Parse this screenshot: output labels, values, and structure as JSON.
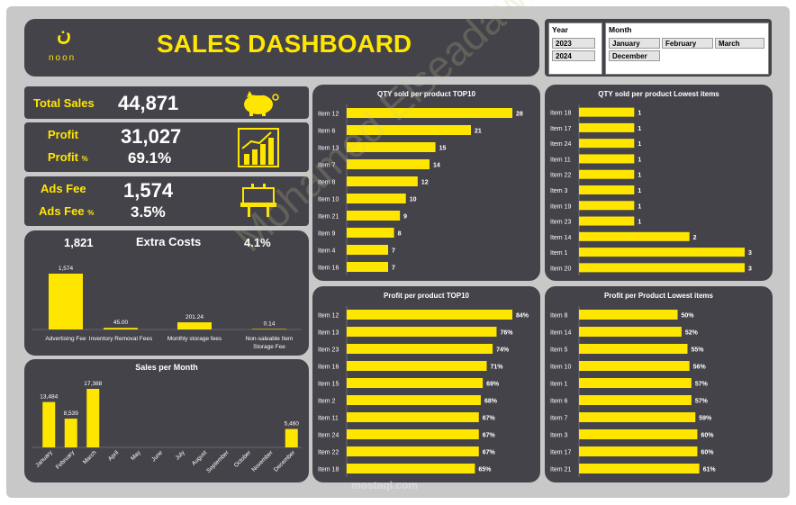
{
  "header": {
    "logo_text": "noon",
    "logo_glyph": "ن",
    "title": "SALES DASHBOARD"
  },
  "slicers": {
    "year": {
      "title": "Year",
      "options": [
        "2023",
        "2024"
      ]
    },
    "month": {
      "title": "Month",
      "options": [
        "January",
        "February",
        "March",
        "December"
      ]
    }
  },
  "kpis": {
    "total_sales": {
      "label": "Total Sales",
      "value": "44,871"
    },
    "profit": {
      "label": "Profit",
      "value": "31,027",
      "pct_label": "Profit",
      "pct_symbol": "%",
      "pct_value": "69.1%"
    },
    "ads_fee": {
      "label": "Ads Fee",
      "value": "1,574",
      "pct_label": "Ads Fee",
      "pct_symbol": "%",
      "pct_value": "3.5%"
    }
  },
  "colors": {
    "accent": "#ffe600",
    "card": "#45434a",
    "frame": "#c8c8c8"
  },
  "watermark": {
    "text": "Mohamed Elseadawi",
    "site": "mostaql.com"
  },
  "chart_data": [
    {
      "id": "extra_costs",
      "type": "bar",
      "title": "Extra Costs",
      "header_total": "1,821",
      "header_pct": "4.1%",
      "categories": [
        "Advertising Fee",
        "Inventory Removal Fees",
        "Monthly storage fees",
        "Non-saleable Item Storage Fee"
      ],
      "values": [
        1574,
        45.0,
        201.24,
        0.14
      ],
      "labels": [
        "1,574",
        "45.00",
        "201.24",
        "0.14"
      ]
    },
    {
      "id": "sales_month",
      "type": "bar",
      "title": "Sales per Month",
      "categories": [
        "January",
        "February",
        "March",
        "April",
        "May",
        "June",
        "July",
        "August",
        "September",
        "October",
        "November",
        "December"
      ],
      "values": [
        13484,
        8539,
        17388,
        0,
        0,
        0,
        0,
        0,
        0,
        0,
        0,
        5460
      ],
      "labels": [
        "13,484",
        "8,539",
        "17,388",
        "",
        "",
        "",
        "",
        "",
        "",
        "",
        "",
        "5,460"
      ]
    },
    {
      "id": "qty_top",
      "type": "bar",
      "title": "QTY sold per product TOP10",
      "categories": [
        "Item 12",
        "Item 6",
        "Item 13",
        "Item 7",
        "Item 8",
        "Item 10",
        "Item 21",
        "Item 9",
        "Item 4",
        "Item 16"
      ],
      "values": [
        28,
        21,
        15,
        14,
        12,
        10,
        9,
        8,
        7,
        7
      ],
      "labels": [
        "28",
        "21",
        "15",
        "14",
        "12",
        "10",
        "9",
        "8",
        "7",
        "7"
      ]
    },
    {
      "id": "qty_low",
      "type": "bar",
      "title": "QTY sold per product Lowest items",
      "categories": [
        "Item 18",
        "Item 17",
        "Item 24",
        "Item 11",
        "Item 22",
        "Item 3",
        "Item 19",
        "Item 23",
        "Item 14",
        "Item 1",
        "Item 20"
      ],
      "values": [
        1,
        1,
        1,
        1,
        1,
        1,
        1,
        1,
        2,
        3,
        3
      ],
      "labels": [
        "1",
        "1",
        "1",
        "1",
        "1",
        "1",
        "1",
        "1",
        "2",
        "3",
        "3"
      ]
    },
    {
      "id": "profit_top",
      "type": "bar",
      "title": "Profit per product TOP10",
      "categories": [
        "Item 12",
        "Item 13",
        "Item 23",
        "Item 16",
        "Item 15",
        "Item 2",
        "Item 11",
        "Item 24",
        "Item 22",
        "Item 18"
      ],
      "values": [
        84,
        76,
        74,
        71,
        69,
        68,
        67,
        67,
        67,
        65
      ],
      "labels": [
        "84%",
        "76%",
        "74%",
        "71%",
        "69%",
        "68%",
        "67%",
        "67%",
        "67%",
        "65%"
      ]
    },
    {
      "id": "profit_low",
      "type": "bar",
      "title": "Profit per Product Lowest items",
      "categories": [
        "Item 8",
        "Item 14",
        "Item 5",
        "Item 10",
        "Item 1",
        "Item 6",
        "Item 7",
        "Item 3",
        "Item 17",
        "Item 21"
      ],
      "values": [
        50,
        52,
        55,
        56,
        57,
        57,
        59,
        60,
        60,
        61
      ],
      "labels": [
        "50%",
        "52%",
        "55%",
        "56%",
        "57%",
        "57%",
        "59%",
        "60%",
        "60%",
        "61%"
      ]
    }
  ]
}
